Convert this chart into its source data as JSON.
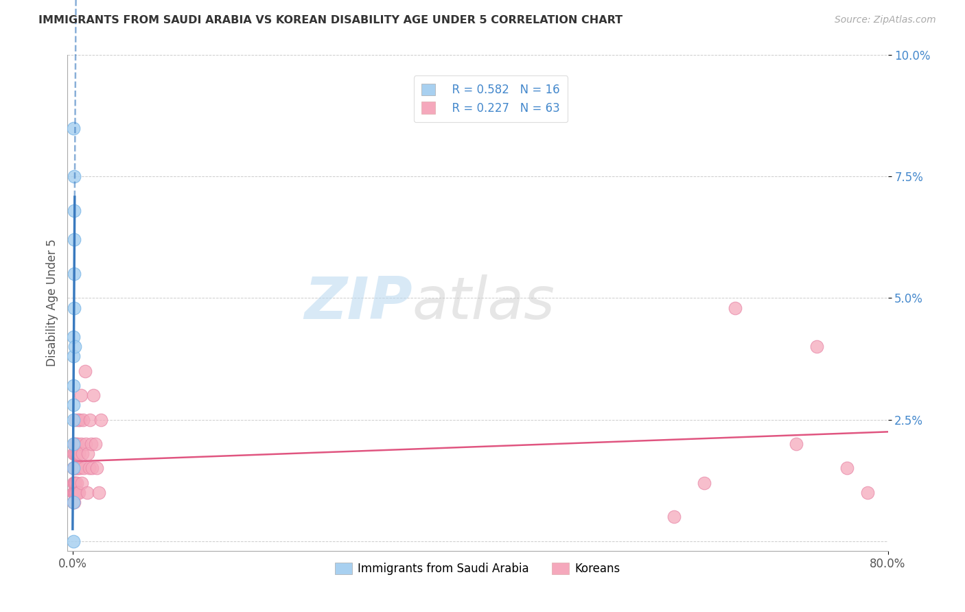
{
  "title": "IMMIGRANTS FROM SAUDI ARABIA VS KOREAN DISABILITY AGE UNDER 5 CORRELATION CHART",
  "source": "Source: ZipAtlas.com",
  "ylabel": "Disability Age Under 5",
  "xlim": [
    -0.005,
    0.8
  ],
  "ylim": [
    -0.002,
    0.1
  ],
  "xtick_positions": [
    0.0,
    0.8
  ],
  "xtick_labels": [
    "0.0%",
    "80.0%"
  ],
  "ytick_positions": [
    0.025,
    0.05,
    0.075,
    0.1
  ],
  "ytick_labels": [
    "2.5%",
    "5.0%",
    "7.5%",
    "10.0%"
  ],
  "grid_yticks": [
    0.0,
    0.025,
    0.05,
    0.075,
    0.1
  ],
  "legend_R1": "0.582",
  "legend_N1": "16",
  "legend_R2": "0.227",
  "legend_N2": "63",
  "color_blue": "#a8d0f0",
  "color_blue_edge": "#7db8e8",
  "color_pink": "#f5a8bc",
  "color_pink_edge": "#e888a8",
  "color_trend_blue": "#3a7abf",
  "color_trend_pink": "#e05580",
  "color_axis_label": "#4488cc",
  "color_title": "#333333",
  "color_source": "#aaaaaa",
  "blue_x": [
    0.0008,
    0.0008,
    0.0008,
    0.0008,
    0.0008,
    0.001,
    0.001,
    0.001,
    0.001,
    0.0012,
    0.0012,
    0.0014,
    0.0015,
    0.0015,
    0.002,
    0.0008
  ],
  "blue_y": [
    0.0,
    0.008,
    0.015,
    0.02,
    0.025,
    0.028,
    0.032,
    0.038,
    0.042,
    0.048,
    0.055,
    0.062,
    0.068,
    0.075,
    0.04,
    0.085
  ],
  "pink_x": [
    0.0005,
    0.0006,
    0.0007,
    0.0008,
    0.0009,
    0.001,
    0.001,
    0.0011,
    0.0012,
    0.0013,
    0.0014,
    0.0015,
    0.0016,
    0.0017,
    0.0018,
    0.0019,
    0.002,
    0.0022,
    0.0023,
    0.0025,
    0.0027,
    0.0028,
    0.003,
    0.0032,
    0.0035,
    0.0037,
    0.004,
    0.0043,
    0.0045,
    0.0048,
    0.005,
    0.0055,
    0.0058,
    0.006,
    0.0065,
    0.007,
    0.0075,
    0.008,
    0.0085,
    0.009,
    0.0095,
    0.01,
    0.011,
    0.012,
    0.013,
    0.014,
    0.015,
    0.016,
    0.017,
    0.018,
    0.019,
    0.02,
    0.022,
    0.024,
    0.026,
    0.028,
    0.59,
    0.62,
    0.65,
    0.71,
    0.73,
    0.76,
    0.78
  ],
  "pink_y": [
    0.01,
    0.015,
    0.008,
    0.012,
    0.018,
    0.01,
    0.015,
    0.008,
    0.02,
    0.012,
    0.015,
    0.01,
    0.018,
    0.008,
    0.012,
    0.015,
    0.01,
    0.02,
    0.015,
    0.01,
    0.018,
    0.012,
    0.025,
    0.01,
    0.015,
    0.02,
    0.012,
    0.018,
    0.01,
    0.015,
    0.02,
    0.015,
    0.025,
    0.01,
    0.018,
    0.025,
    0.015,
    0.02,
    0.03,
    0.012,
    0.018,
    0.025,
    0.015,
    0.035,
    0.02,
    0.01,
    0.018,
    0.015,
    0.025,
    0.02,
    0.015,
    0.03,
    0.02,
    0.015,
    0.01,
    0.025,
    0.005,
    0.012,
    0.048,
    0.02,
    0.04,
    0.015,
    0.01
  ],
  "watermark_text": "ZIPatlas",
  "watermark_color_zip": "#c8dff0",
  "watermark_color_atlas": "#c8c8c8"
}
